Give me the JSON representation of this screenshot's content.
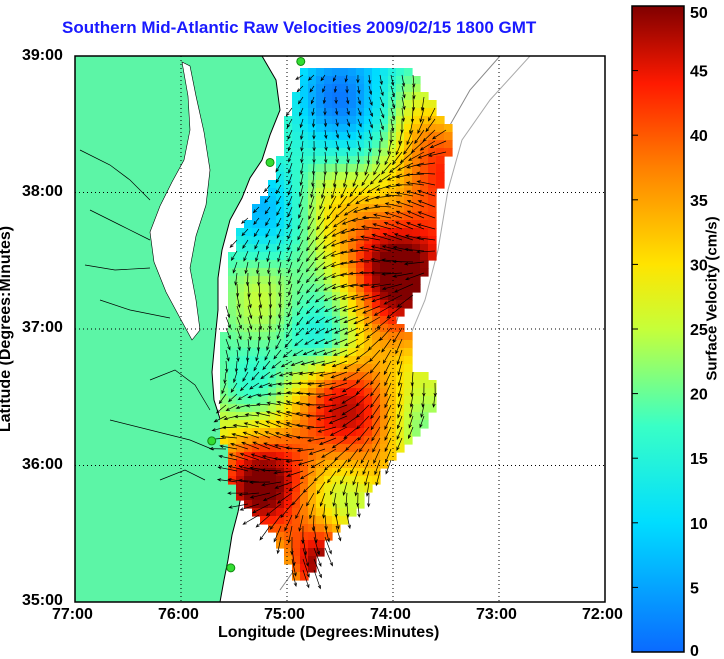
{
  "title": "Southern Mid-Atlantic Raw Velocities 2009/02/15 1800 GMT",
  "xlabel": "Longitude (Degrees:Minutes)",
  "ylabel": "Latitude (Degrees:Minutes)",
  "x_ticks": [
    "77:00",
    "76:00",
    "75:00",
    "74:00",
    "73:00",
    "72:00"
  ],
  "y_ticks": [
    "39:00",
    "38:00",
    "37:00",
    "36:00",
    "35:00"
  ],
  "colorbar": {
    "label": "Surface Velocity (cm/s)",
    "ticks": [
      "0",
      "5",
      "10",
      "15",
      "20",
      "25",
      "30",
      "35",
      "40",
      "45",
      "50"
    ],
    "min": 0,
    "max": 50
  },
  "colors": {
    "land": "#5cf5a6",
    "water": "#ffffff",
    "title": "#1a1aff",
    "grid": "#000000",
    "station": "#33dd33"
  },
  "map_extent": {
    "lon": [
      -77,
      -72
    ],
    "lat": [
      35,
      39
    ]
  },
  "stations": [
    {
      "lon": -74.87,
      "lat": 38.96
    },
    {
      "lon": -75.16,
      "lat": 38.22
    },
    {
      "lon": -75.71,
      "lat": 36.18
    },
    {
      "lon": -75.53,
      "lat": 35.25
    }
  ]
}
